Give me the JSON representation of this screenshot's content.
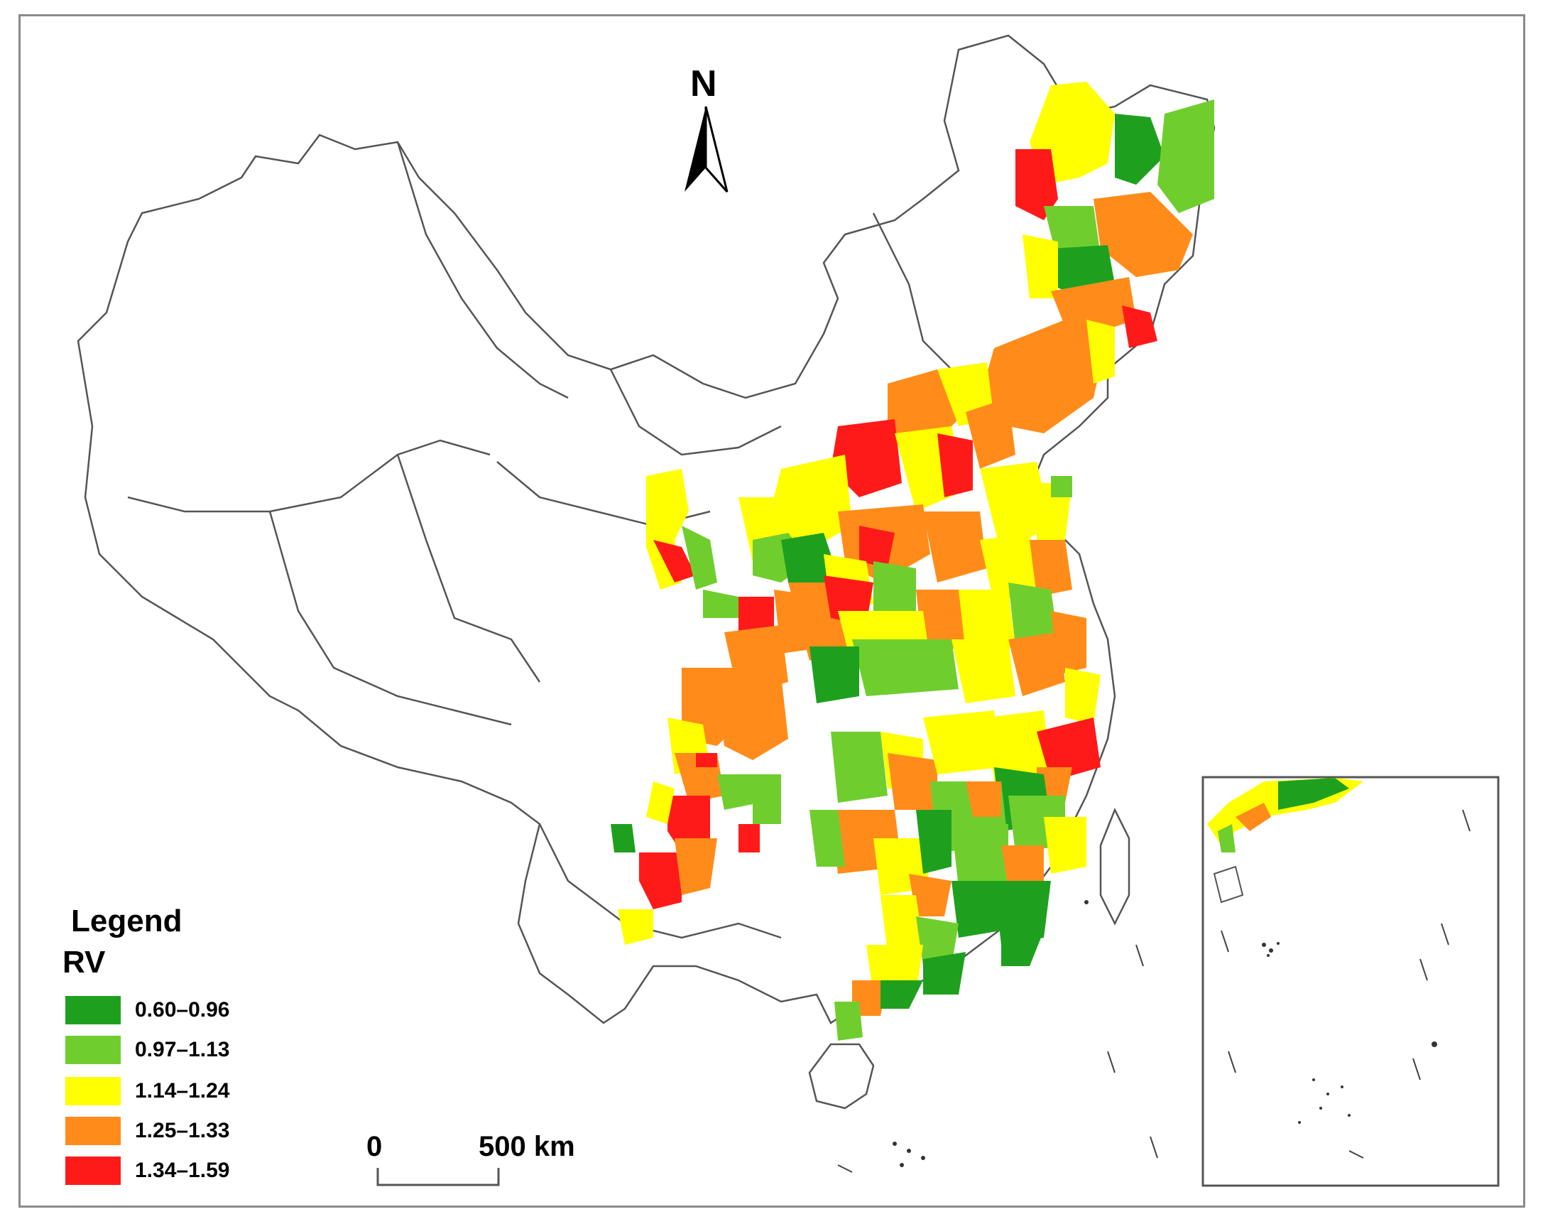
{
  "north_arrow": {
    "label": "N"
  },
  "legend": {
    "title": "Legend",
    "variable": "RV",
    "classes": [
      {
        "label": "0.60–0.96",
        "color": "#1ea01e"
      },
      {
        "label": "0.97–1.13",
        "color": "#6fce2e"
      },
      {
        "label": "1.14–1.24",
        "color": "#ffff00"
      },
      {
        "label": "1.25–1.33",
        "color": "#ff8c1a"
      },
      {
        "label": "1.34–1.59",
        "color": "#ff1a1a"
      }
    ]
  },
  "scale_bar": {
    "start_label": "0",
    "end_label": "500 km"
  }
}
